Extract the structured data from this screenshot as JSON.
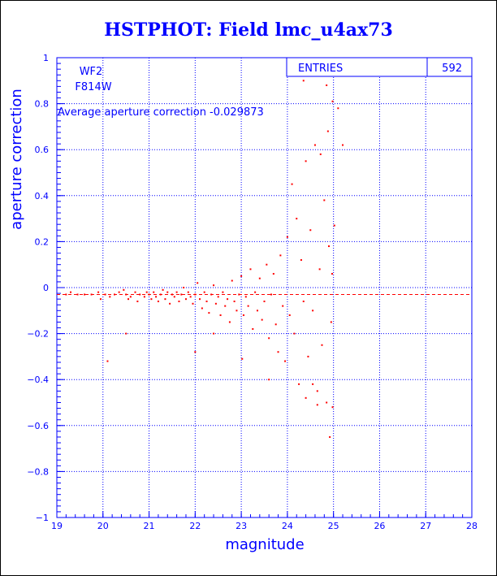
{
  "title": "HSTPHOT: Field lmc_u4ax73",
  "stats": {
    "entries_label": "ENTRIES",
    "entries_value": "592"
  },
  "annotations": {
    "chip": "WF2",
    "filter": "F814W",
    "average": "Average aperture correction -0.029873"
  },
  "colors": {
    "axes": "#0000ff",
    "points": "#ff0000",
    "title": "#0000ff"
  },
  "chart_data": {
    "type": "scatter",
    "title": "HSTPHOT: Field lmc_u4ax73",
    "xlabel": "magnitude",
    "ylabel": "aperture correction",
    "xlim": [
      19,
      28
    ],
    "ylim": [
      -1,
      1
    ],
    "x_ticks": [
      19,
      20,
      21,
      22,
      23,
      24,
      25,
      26,
      27,
      28
    ],
    "y_ticks": [
      -1,
      -0.8,
      -0.6,
      -0.4,
      -0.2,
      0,
      0.2,
      0.4,
      0.6,
      0.8,
      1
    ],
    "grid": true,
    "entries": 592,
    "average_line": -0.029873,
    "points": [
      [
        19.2,
        -0.03
      ],
      [
        19.3,
        -0.02
      ],
      [
        19.45,
        -0.03
      ],
      [
        19.6,
        -0.03
      ],
      [
        19.75,
        -0.03
      ],
      [
        19.9,
        -0.02
      ],
      [
        19.95,
        -0.05
      ],
      [
        20.05,
        -0.03
      ],
      [
        20.15,
        -0.04
      ],
      [
        20.25,
        -0.03
      ],
      [
        20.35,
        -0.02
      ],
      [
        20.45,
        -0.01
      ],
      [
        20.5,
        -0.03
      ],
      [
        20.55,
        -0.05
      ],
      [
        20.6,
        -0.04
      ],
      [
        20.7,
        -0.02
      ],
      [
        20.75,
        -0.06
      ],
      [
        20.8,
        -0.03
      ],
      [
        20.9,
        -0.04
      ],
      [
        20.95,
        -0.02
      ],
      [
        21.0,
        -0.03
      ],
      [
        21.05,
        -0.05
      ],
      [
        21.1,
        -0.02
      ],
      [
        21.15,
        -0.04
      ],
      [
        21.2,
        -0.06
      ],
      [
        21.25,
        -0.03
      ],
      [
        21.3,
        -0.01
      ],
      [
        21.35,
        -0.05
      ],
      [
        21.4,
        -0.02
      ],
      [
        21.45,
        -0.07
      ],
      [
        21.5,
        -0.03
      ],
      [
        21.55,
        -0.04
      ],
      [
        21.6,
        -0.02
      ],
      [
        21.65,
        -0.06
      ],
      [
        21.7,
        -0.03
      ],
      [
        21.75,
        0.0
      ],
      [
        21.8,
        -0.05
      ],
      [
        21.85,
        -0.02
      ],
      [
        21.9,
        -0.04
      ],
      [
        21.95,
        -0.07
      ],
      [
        22.0,
        -0.03
      ],
      [
        22.05,
        0.02
      ],
      [
        22.1,
        -0.05
      ],
      [
        22.15,
        -0.09
      ],
      [
        22.2,
        -0.02
      ],
      [
        22.25,
        -0.06
      ],
      [
        22.3,
        -0.11
      ],
      [
        22.35,
        -0.03
      ],
      [
        22.4,
        0.01
      ],
      [
        22.45,
        -0.07
      ],
      [
        22.5,
        -0.04
      ],
      [
        22.55,
        -0.12
      ],
      [
        22.6,
        -0.02
      ],
      [
        22.65,
        -0.08
      ],
      [
        22.7,
        -0.05
      ],
      [
        22.75,
        -0.15
      ],
      [
        22.8,
        0.03
      ],
      [
        22.85,
        -0.06
      ],
      [
        22.9,
        -0.1
      ],
      [
        22.95,
        -0.03
      ],
      [
        23.0,
        0.05
      ],
      [
        23.05,
        -0.12
      ],
      [
        23.1,
        -0.04
      ],
      [
        23.15,
        -0.08
      ],
      [
        23.2,
        0.08
      ],
      [
        23.25,
        -0.18
      ],
      [
        23.3,
        -0.02
      ],
      [
        23.35,
        -0.1
      ],
      [
        23.4,
        0.04
      ],
      [
        23.45,
        -0.14
      ],
      [
        23.5,
        -0.06
      ],
      [
        23.55,
        0.1
      ],
      [
        23.6,
        -0.22
      ],
      [
        23.65,
        -0.03
      ],
      [
        23.7,
        0.06
      ],
      [
        23.75,
        -0.16
      ],
      [
        23.8,
        -0.28
      ],
      [
        23.85,
        0.14
      ],
      [
        23.9,
        -0.08
      ],
      [
        23.95,
        -0.32
      ],
      [
        24.0,
        0.22
      ],
      [
        24.05,
        -0.12
      ],
      [
        24.1,
        0.45
      ],
      [
        24.15,
        -0.2
      ],
      [
        24.2,
        0.3
      ],
      [
        24.25,
        -0.42
      ],
      [
        24.3,
        0.12
      ],
      [
        24.35,
        -0.06
      ],
      [
        24.4,
        0.55
      ],
      [
        24.45,
        -0.3
      ],
      [
        24.5,
        0.25
      ],
      [
        24.55,
        -0.1
      ],
      [
        24.6,
        0.62
      ],
      [
        24.65,
        -0.45
      ],
      [
        24.7,
        0.08
      ],
      [
        24.75,
        -0.25
      ],
      [
        24.8,
        0.38
      ],
      [
        24.85,
        -0.5
      ],
      [
        24.9,
        0.18
      ],
      [
        24.95,
        -0.15
      ],
      [
        24.35,
        0.9
      ],
      [
        24.85,
        0.88
      ],
      [
        24.98,
        0.81
      ],
      [
        25.1,
        0.78
      ],
      [
        25.2,
        0.62
      ],
      [
        24.88,
        0.68
      ],
      [
        24.72,
        0.58
      ],
      [
        25.02,
        0.27
      ],
      [
        24.97,
        0.06
      ],
      [
        24.98,
        -0.52
      ],
      [
        24.92,
        -0.65
      ],
      [
        24.65,
        -0.51
      ],
      [
        24.55,
        -0.42
      ],
      [
        24.4,
        -0.48
      ],
      [
        20.1,
        -0.32
      ],
      [
        20.5,
        -0.2
      ],
      [
        22.0,
        -0.28
      ],
      [
        22.4,
        -0.2
      ],
      [
        23.02,
        -0.31
      ],
      [
        23.6,
        -0.4
      ]
    ]
  }
}
